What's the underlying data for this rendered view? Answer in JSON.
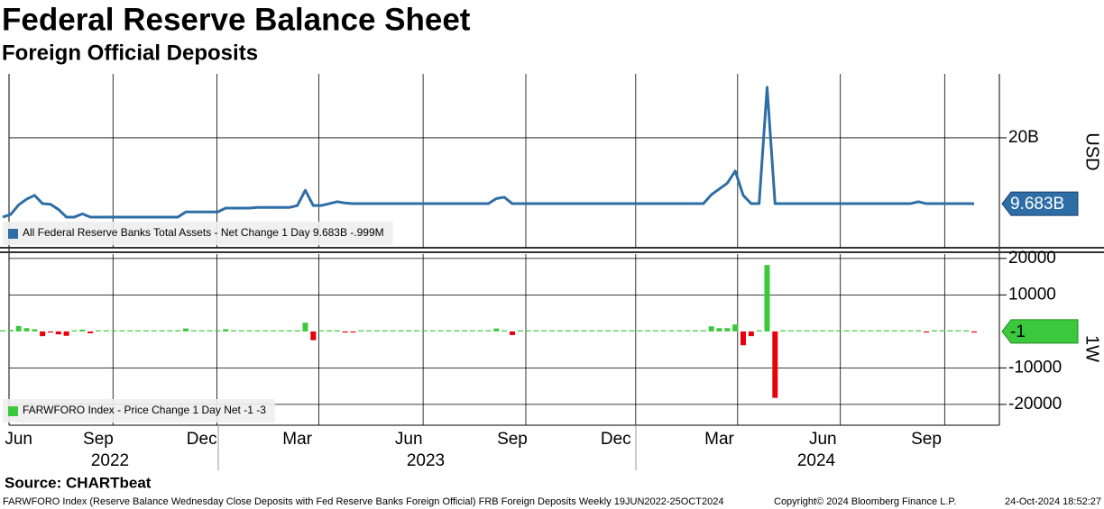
{
  "title": "Federal Reserve Balance Sheet",
  "subtitle": "Foreign Official Deposits",
  "source": "Source: CHARTbeat",
  "footer": {
    "description": "FARWFORO Index (Reserve Balance Wednesday Close Deposits with Fed Reserve Banks Foreign Official) FRB Foreign Deposits  Weekly 19JUN2022-25OCT2024",
    "copyright": "Copyright© 2024 Bloomberg Finance L.P.",
    "timestamp": "24-Oct-2024 18:52:27"
  },
  "chart_data": [
    {
      "type": "line",
      "y_label": "USD",
      "last_value_label": "9.683B",
      "series": [
        {
          "name": "All Federal Reserve Banks Total Assets - Net Change 1 Day 9.683B  -.999M",
          "color": "#2e6ea6",
          "values": [
            7.6,
            8.0,
            9.5,
            10.4,
            11.0,
            9.7,
            9.6,
            8.8,
            7.6,
            7.6,
            8.1,
            7.6,
            7.6,
            7.6,
            7.6,
            7.6,
            7.6,
            7.6,
            7.6,
            7.6,
            7.6,
            7.6,
            7.6,
            8.4,
            8.4,
            8.4,
            8.4,
            8.4,
            9.0,
            9.0,
            9.0,
            9.0,
            9.1,
            9.1,
            9.1,
            9.1,
            9.1,
            9.4,
            11.8,
            9.4,
            9.4,
            9.7,
            10.0,
            9.8,
            9.7,
            9.7,
            9.7,
            9.7,
            9.7,
            9.7,
            9.7,
            9.7,
            9.7,
            9.7,
            9.7,
            9.7,
            9.7,
            9.7,
            9.7,
            9.7,
            9.7,
            9.7,
            10.5,
            10.7,
            9.7,
            9.7,
            9.7,
            9.7,
            9.7,
            9.7,
            9.7,
            9.7,
            9.7,
            9.7,
            9.7,
            9.7,
            9.7,
            9.7,
            9.7,
            9.7,
            9.7,
            9.7,
            9.7,
            9.7,
            9.7,
            9.7,
            9.7,
            9.7,
            9.7,
            11.1,
            12.0,
            12.9,
            14.8,
            11.0,
            9.7,
            9.7,
            27.9,
            9.7,
            9.7,
            9.7,
            9.7,
            9.7,
            9.7,
            9.7,
            9.7,
            9.7,
            9.7,
            9.7,
            9.7,
            9.7,
            9.7,
            9.7,
            9.7,
            9.7,
            9.7,
            10.0,
            9.7,
            9.7,
            9.7,
            9.7,
            9.7,
            9.7,
            9.683
          ]
        }
      ],
      "ylim": [
        2.8,
        30
      ],
      "yticks": [
        {
          "value": 20,
          "label": "20B"
        }
      ],
      "grid": true
    },
    {
      "type": "bar",
      "y_label": "1W",
      "last_value_label": "-1",
      "positive_color": "#3cc83c",
      "negative_color": "#e8000b",
      "categories": [
        null,
        null,
        "Jun",
        null,
        null,
        null,
        null,
        null,
        null,
        null,
        null,
        null,
        "Sep",
        null,
        null,
        null,
        null,
        null,
        null,
        null,
        null,
        null,
        null,
        null,
        null,
        "Dec",
        null,
        null,
        null,
        null,
        null,
        null,
        null,
        null,
        null,
        null,
        null,
        "Mar",
        null,
        null,
        null,
        null,
        null,
        null,
        null,
        null,
        null,
        null,
        null,
        null,
        null,
        "Jun",
        null,
        null,
        null,
        null,
        null,
        null,
        null,
        null,
        null,
        null,
        null,
        null,
        "Sep",
        null,
        null,
        null,
        null,
        null,
        null,
        null,
        null,
        null,
        null,
        null,
        null,
        "Dec",
        null,
        null,
        null,
        null,
        null,
        null,
        null,
        null,
        null,
        null,
        null,
        null,
        "Mar",
        null,
        null,
        null,
        null,
        null,
        null,
        null,
        null,
        null,
        null,
        null,
        null,
        "Jun",
        null,
        null,
        null,
        null,
        null,
        null,
        null,
        null,
        null,
        null,
        null,
        null,
        "Sep",
        null,
        null,
        null,
        null,
        null,
        null
      ],
      "x_groups": [
        "2022",
        "2023",
        "2024"
      ],
      "series": [
        {
          "name": "FARWFORO Index - Price Change 1 Day Net -1  -3",
          "color": "#3cc83c",
          "values": [
            0,
            400,
            1500,
            900,
            600,
            -1300,
            -100,
            -800,
            -1200,
            0,
            500,
            -500,
            0,
            0,
            0,
            0,
            0,
            0,
            0,
            0,
            0,
            0,
            0,
            800,
            0,
            0,
            0,
            0,
            600,
            0,
            0,
            0,
            100,
            0,
            0,
            0,
            0,
            300,
            2400,
            -2400,
            0,
            300,
            300,
            -200,
            -100,
            0,
            0,
            0,
            0,
            0,
            0,
            0,
            0,
            0,
            0,
            0,
            0,
            0,
            0,
            0,
            0,
            0,
            800,
            200,
            -1000,
            0,
            0,
            0,
            0,
            0,
            0,
            0,
            0,
            0,
            0,
            0,
            0,
            0,
            0,
            0,
            0,
            0,
            0,
            0,
            0,
            0,
            0,
            0,
            0,
            1400,
            900,
            900,
            1900,
            -3800,
            -1300,
            0,
            18200,
            -18200,
            0,
            0,
            0,
            0,
            0,
            0,
            0,
            0,
            0,
            0,
            0,
            0,
            0,
            0,
            0,
            0,
            0,
            300,
            -300,
            0,
            0,
            0,
            0,
            0,
            -1
          ]
        }
      ],
      "ylim": [
        -25700,
        21200
      ],
      "yticks": [
        20000,
        10000,
        -10000,
        -20000
      ],
      "grid": true
    }
  ]
}
